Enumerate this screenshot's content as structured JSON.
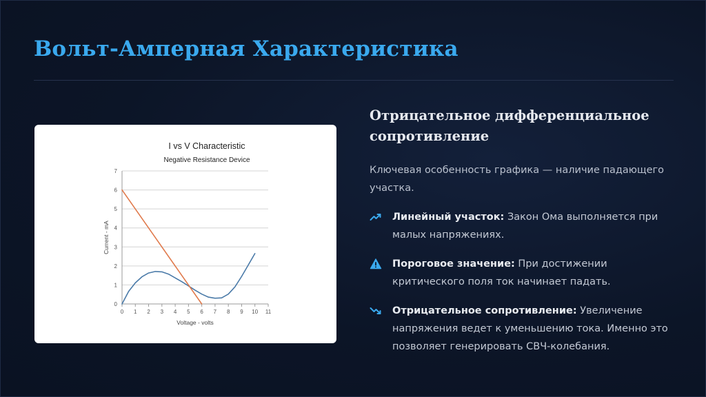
{
  "slide": {
    "title": "Вольт-Амперная Характеристика",
    "subtitle": "Отрицательное дифференциальное сопротивление",
    "lead": "Ключевая особенность графика — наличие падающего участка.",
    "accent_color": "#3aa9ee",
    "items": [
      {
        "icon": "trend-up-icon",
        "bold": "Линейный участок:",
        "text": " Закон Ома выполняется при малых напряжениях."
      },
      {
        "icon": "warning-icon",
        "bold": "Пороговое значение:",
        "text": " При достижении критического поля ток начинает падать."
      },
      {
        "icon": "trend-down-icon",
        "bold": "Отрицательное сопротивление:",
        "text": " Увеличение напряжения ведет к уменьшению тока. Именно это позволяет генерировать СВЧ-колебания."
      }
    ]
  },
  "chart_data": {
    "type": "line",
    "title": "I vs V Characteristic",
    "subtitle": "Negative Resistance Device",
    "xlabel": "Voltage - volts",
    "ylabel": "Current - mA",
    "xlim": [
      0,
      11
    ],
    "ylim": [
      0,
      7
    ],
    "xticks": [
      "0",
      "1",
      "2",
      "3",
      "4",
      "5",
      "6",
      "7",
      "8",
      "9",
      "10",
      "11"
    ],
    "yticks": [
      "0",
      "1",
      "2",
      "3",
      "4",
      "5",
      "6",
      "7"
    ],
    "grid": "horizontal",
    "series": [
      {
        "color": "#4a7aa8",
        "x": [
          0,
          0.5,
          1,
          1.5,
          2,
          2.5,
          3,
          3.5,
          4,
          4.5,
          5,
          5.5,
          6,
          6.5,
          7,
          7.5,
          8,
          8.5,
          9,
          9.5,
          10
        ],
        "y": [
          0,
          0.66,
          1.11,
          1.43,
          1.63,
          1.71,
          1.69,
          1.57,
          1.37,
          1.17,
          0.95,
          0.72,
          0.52,
          0.36,
          0.3,
          0.32,
          0.52,
          0.9,
          1.45,
          2.05,
          2.65
        ]
      },
      {
        "color": "#e07a4c",
        "x": [
          0,
          6
        ],
        "y": [
          6,
          0
        ]
      }
    ]
  }
}
